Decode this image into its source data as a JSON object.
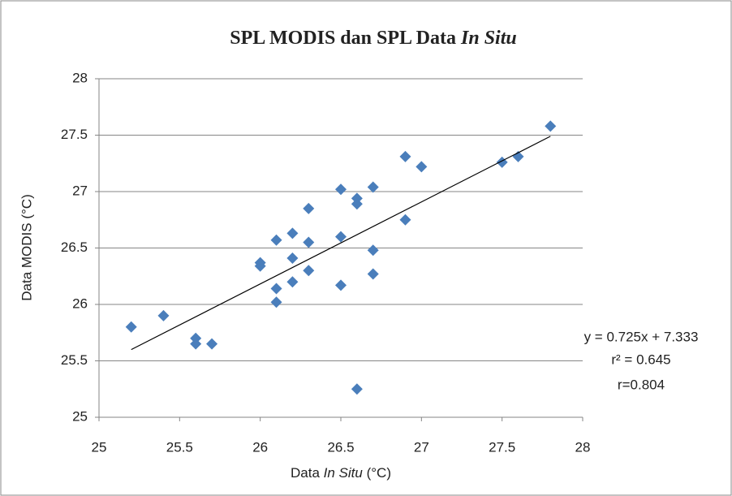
{
  "chart_data": {
    "type": "scatter",
    "title": [
      "SPL MODIS dan SPL Data ",
      "In Situ"
    ],
    "x_label": [
      "Data ",
      "In Situ",
      " (°C)"
    ],
    "y_label": "Data MODIS (°C)",
    "color": "#4a7ebb",
    "x": [
      25.2,
      25.4,
      25.6,
      25.6,
      25.7,
      26.0,
      26.0,
      26.1,
      26.1,
      26.1,
      26.2,
      26.2,
      26.2,
      26.3,
      26.3,
      26.3,
      26.5,
      26.5,
      26.5,
      26.6,
      26.6,
      26.6,
      26.7,
      26.7,
      26.7,
      26.9,
      26.9,
      27.0,
      27.5,
      27.6,
      27.8
    ],
    "values": [
      25.8,
      25.9,
      25.7,
      25.65,
      25.65,
      26.37,
      26.34,
      26.57,
      26.14,
      26.02,
      26.63,
      26.41,
      26.2,
      26.85,
      26.55,
      26.3,
      27.02,
      26.6,
      26.17,
      26.94,
      26.89,
      25.25,
      27.04,
      26.48,
      26.27,
      27.31,
      26.75,
      27.22,
      27.26,
      27.31,
      27.58
    ],
    "trendline": {
      "x": [
        25.2,
        27.8
      ],
      "values": [
        25.6,
        27.49
      ]
    },
    "annotations": [
      "y = 0.725x + 7.333",
      "r² = 0.645",
      "r=0.804"
    ],
    "xlim": [
      25,
      28
    ],
    "ylim": [
      25,
      28
    ],
    "xticks": [
      25,
      25.5,
      26,
      26.5,
      27,
      27.5,
      28
    ],
    "yticks": [
      25,
      25.5,
      26,
      26.5,
      27,
      27.5,
      28
    ],
    "grid": true
  }
}
